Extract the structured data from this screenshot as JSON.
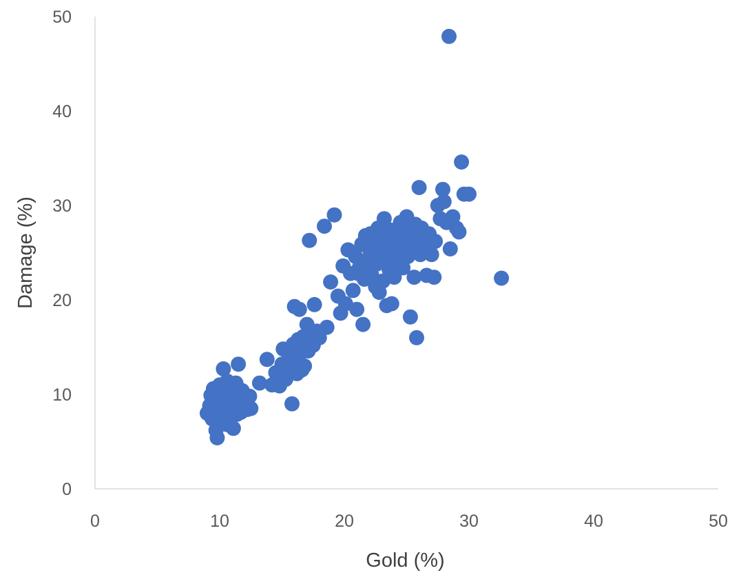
{
  "chart_data": {
    "type": "scatter",
    "title": "",
    "xlabel": "Gold (%)",
    "ylabel": "Damage (%)",
    "xlim": [
      0,
      50
    ],
    "ylim": [
      0,
      50
    ],
    "xticks": [
      "0",
      "10",
      "20",
      "30",
      "40",
      "50"
    ],
    "yticks": [
      "0",
      "10",
      "20",
      "30",
      "40",
      "50"
    ],
    "grid": false,
    "legend": "none",
    "marker_color": "#4472C4",
    "axis_color": "#D9D9D9",
    "series": [
      {
        "points": [
          [
            9.0,
            8.0
          ],
          [
            9.2,
            8.8
          ],
          [
            9.4,
            7.4
          ],
          [
            9.5,
            10.6
          ],
          [
            9.6,
            9.2
          ],
          [
            9.7,
            6.2
          ],
          [
            9.8,
            5.4
          ],
          [
            9.9,
            8.5
          ],
          [
            10.0,
            11.0
          ],
          [
            10.1,
            7.8
          ],
          [
            10.2,
            9.6
          ],
          [
            10.3,
            12.7
          ],
          [
            10.4,
            8.2
          ],
          [
            10.5,
            10.2
          ],
          [
            10.6,
            6.8
          ],
          [
            10.7,
            9.0
          ],
          [
            10.8,
            7.6
          ],
          [
            10.9,
            10.8
          ],
          [
            11.0,
            8.6
          ],
          [
            11.1,
            6.4
          ],
          [
            11.2,
            9.4
          ],
          [
            11.3,
            11.2
          ],
          [
            11.4,
            7.9
          ],
          [
            11.5,
            13.2
          ],
          [
            11.6,
            8.9
          ],
          [
            11.8,
            10.4
          ],
          [
            12.0,
            9.6
          ],
          [
            12.2,
            8.4
          ],
          [
            12.4,
            9.8
          ],
          [
            12.5,
            8.5
          ],
          [
            9.3,
            9.9
          ],
          [
            10.0,
            6.9
          ],
          [
            10.6,
            11.4
          ],
          [
            11.7,
            8.1
          ],
          [
            9.9,
            7.2
          ],
          [
            10.8,
            9.7
          ],
          [
            13.2,
            11.2
          ],
          [
            13.8,
            13.7
          ],
          [
            14.2,
            11.0
          ],
          [
            14.5,
            12.3
          ],
          [
            14.8,
            10.9
          ],
          [
            15.0,
            13.2
          ],
          [
            15.1,
            14.8
          ],
          [
            15.3,
            11.6
          ],
          [
            15.5,
            12.8
          ],
          [
            15.6,
            14.1
          ],
          [
            15.8,
            9.0
          ],
          [
            15.9,
            15.3
          ],
          [
            16.0,
            19.3
          ],
          [
            16.1,
            13.4
          ],
          [
            16.2,
            12.2
          ],
          [
            16.3,
            15.8
          ],
          [
            16.4,
            19.0
          ],
          [
            16.5,
            14.4
          ],
          [
            16.6,
            12.6
          ],
          [
            16.7,
            16.1
          ],
          [
            16.8,
            13.0
          ],
          [
            16.9,
            15.0
          ],
          [
            17.0,
            17.4
          ],
          [
            17.1,
            14.6
          ],
          [
            17.2,
            26.3
          ],
          [
            17.3,
            16.2
          ],
          [
            17.5,
            15.2
          ],
          [
            17.6,
            19.5
          ],
          [
            17.8,
            16.7
          ],
          [
            18.0,
            16.0
          ],
          [
            18.4,
            27.8
          ],
          [
            18.6,
            17.1
          ],
          [
            18.9,
            21.9
          ],
          [
            19.2,
            29.0
          ],
          [
            19.5,
            20.4
          ],
          [
            19.7,
            18.6
          ],
          [
            19.9,
            23.6
          ],
          [
            20.1,
            19.6
          ],
          [
            20.3,
            25.3
          ],
          [
            20.5,
            22.8
          ],
          [
            20.7,
            21.0
          ],
          [
            20.9,
            24.6
          ],
          [
            21.0,
            19.0
          ],
          [
            21.2,
            23.4
          ],
          [
            21.4,
            25.9
          ],
          [
            21.5,
            17.4
          ],
          [
            21.6,
            22.2
          ],
          [
            21.7,
            26.8
          ],
          [
            21.8,
            24.2
          ],
          [
            21.9,
            23.0
          ],
          [
            22.0,
            25.4
          ],
          [
            22.1,
            27.0
          ],
          [
            22.2,
            22.6
          ],
          [
            22.3,
            24.8
          ],
          [
            22.4,
            26.1
          ],
          [
            22.5,
            21.4
          ],
          [
            22.6,
            23.8
          ],
          [
            22.7,
            27.6
          ],
          [
            22.8,
            20.8
          ],
          [
            22.9,
            25.0
          ],
          [
            23.0,
            26.6
          ],
          [
            23.1,
            22.0
          ],
          [
            23.2,
            28.6
          ],
          [
            23.3,
            24.4
          ],
          [
            23.4,
            19.4
          ],
          [
            23.5,
            26.2
          ],
          [
            23.6,
            23.2
          ],
          [
            23.7,
            27.4
          ],
          [
            23.8,
            19.6
          ],
          [
            23.9,
            25.6
          ],
          [
            24.0,
            22.4
          ],
          [
            24.1,
            27.0
          ],
          [
            24.2,
            24.0
          ],
          [
            24.3,
            26.4
          ],
          [
            24.4,
            25.2
          ],
          [
            24.5,
            28.2
          ],
          [
            24.6,
            23.6
          ],
          [
            24.7,
            26.0
          ],
          [
            24.8,
            27.8
          ],
          [
            24.9,
            25.0
          ],
          [
            25.0,
            28.8
          ],
          [
            25.1,
            24.6
          ],
          [
            25.2,
            26.8
          ],
          [
            25.3,
            18.2
          ],
          [
            25.4,
            27.2
          ],
          [
            25.5,
            25.8
          ],
          [
            25.6,
            22.4
          ],
          [
            25.7,
            28.0
          ],
          [
            25.8,
            16.0
          ],
          [
            25.9,
            26.4
          ],
          [
            26.0,
            31.9
          ],
          [
            26.1,
            24.8
          ],
          [
            26.2,
            27.6
          ],
          [
            26.4,
            25.4
          ],
          [
            26.6,
            22.6
          ],
          [
            26.8,
            27.0
          ],
          [
            27.0,
            24.8
          ],
          [
            27.2,
            22.4
          ],
          [
            27.3,
            26.2
          ],
          [
            27.5,
            30.0
          ],
          [
            27.7,
            28.6
          ],
          [
            27.9,
            31.7
          ],
          [
            28.0,
            30.4
          ],
          [
            28.2,
            28.2
          ],
          [
            28.4,
            47.9
          ],
          [
            28.5,
            25.4
          ],
          [
            28.7,
            28.8
          ],
          [
            29.0,
            27.6
          ],
          [
            29.2,
            27.2
          ],
          [
            29.4,
            34.6
          ],
          [
            29.6,
            31.2
          ],
          [
            30.0,
            31.2
          ],
          [
            32.6,
            22.3
          ],
          [
            22.6,
            25.2
          ],
          [
            23.9,
            24.6
          ],
          [
            24.7,
            23.4
          ],
          [
            21.1,
            22.8
          ],
          [
            22.4,
            24.0
          ],
          [
            25.1,
            27.4
          ],
          [
            26.5,
            26.0
          ]
        ]
      }
    ]
  }
}
